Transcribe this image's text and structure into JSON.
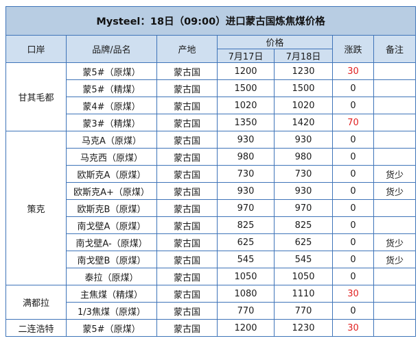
{
  "title": "Mysteel：18日（09:00）进口蒙古国炼焦煤价格",
  "headers": {
    "port": "口岸",
    "brand": "品牌/品名",
    "origin": "产地",
    "price": "价格",
    "date1": "7月17日",
    "date2": "7月18日",
    "change": "涨跌",
    "remark": "备注"
  },
  "colors": {
    "header_bg": "#cfdff0",
    "title_bg": "#b8cde3",
    "border": "#3d73b8",
    "increase": "#e02020"
  },
  "groups": [
    {
      "port": "甘其毛都",
      "rows": [
        {
          "brand": "蒙5#（原煤）",
          "origin": "蒙古国",
          "p1": "1200",
          "p2": "1230",
          "change": "30",
          "remark": ""
        },
        {
          "brand": "蒙5#（精煤）",
          "origin": "蒙古国",
          "p1": "1500",
          "p2": "1500",
          "change": "0",
          "remark": ""
        },
        {
          "brand": "蒙4#（原煤）",
          "origin": "蒙古国",
          "p1": "1020",
          "p2": "1020",
          "change": "0",
          "remark": ""
        },
        {
          "brand": "蒙3#（精煤）",
          "origin": "蒙古国",
          "p1": "1350",
          "p2": "1420",
          "change": "70",
          "remark": ""
        }
      ]
    },
    {
      "port": "策克",
      "rows": [
        {
          "brand": "马克A（原煤）",
          "origin": "蒙古国",
          "p1": "930",
          "p2": "930",
          "change": "0",
          "remark": ""
        },
        {
          "brand": "马克西（原煤）",
          "origin": "蒙古国",
          "p1": "980",
          "p2": "980",
          "change": "0",
          "remark": ""
        },
        {
          "brand": "欧斯克A（原煤）",
          "origin": "蒙古国",
          "p1": "730",
          "p2": "730",
          "change": "0",
          "remark": "货少"
        },
        {
          "brand": "欧斯克A+（原煤）",
          "origin": "蒙古国",
          "p1": "930",
          "p2": "930",
          "change": "0",
          "remark": "货少"
        },
        {
          "brand": "欧斯克B（原煤）",
          "origin": "蒙古国",
          "p1": "970",
          "p2": "970",
          "change": "0",
          "remark": ""
        },
        {
          "brand": "南戈壁A（原煤）",
          "origin": "蒙古国",
          "p1": "825",
          "p2": "825",
          "change": "0",
          "remark": ""
        },
        {
          "brand": "南戈壁A-（原煤）",
          "origin": "蒙古国",
          "p1": "625",
          "p2": "625",
          "change": "0",
          "remark": "货少"
        },
        {
          "brand": "南戈壁B（原煤）",
          "origin": "蒙古国",
          "p1": "545",
          "p2": "545",
          "change": "0",
          "remark": "货少"
        },
        {
          "brand": "泰拉（原煤）",
          "origin": "蒙古国",
          "p1": "1050",
          "p2": "1050",
          "change": "0",
          "remark": ""
        }
      ]
    },
    {
      "port": "满都拉",
      "rows": [
        {
          "brand": "主焦煤（精煤）",
          "origin": "蒙古国",
          "p1": "1080",
          "p2": "1110",
          "change": "30",
          "remark": ""
        },
        {
          "brand": "1/3焦煤（原煤）",
          "origin": "蒙古国",
          "p1": "770",
          "p2": "770",
          "change": "0",
          "remark": ""
        }
      ]
    },
    {
      "port": "二连浩特",
      "rows": [
        {
          "brand": "蒙5#（原煤）",
          "origin": "蒙古国",
          "p1": "1200",
          "p2": "1230",
          "change": "30",
          "remark": ""
        }
      ]
    }
  ]
}
